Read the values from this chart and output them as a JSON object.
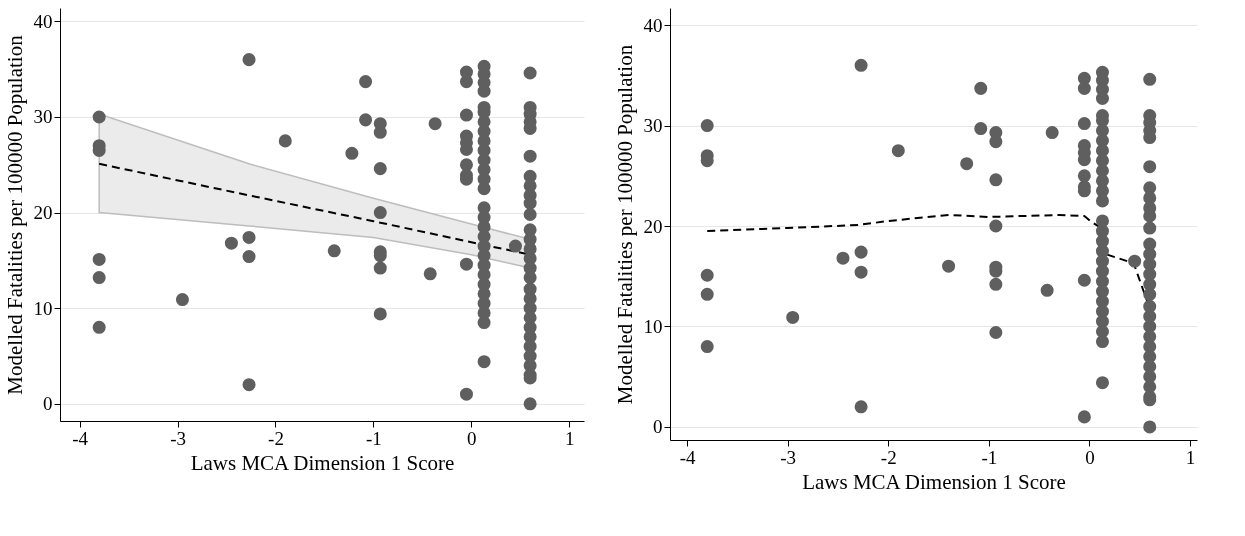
{
  "chart_data": [
    {
      "type": "scatter",
      "xlabel": "Laws MCA Dimension 1 Score",
      "ylabel": "Modelled Fatalities per 100000 Population",
      "xlim": [
        -4.2,
        1.15
      ],
      "ylim": [
        -1.8,
        41.4
      ],
      "xticks": [
        -4,
        -3,
        -2,
        -1,
        0,
        1
      ],
      "yticks": [
        0,
        10,
        20,
        30,
        40
      ],
      "grid": "y",
      "series": [
        {
          "marker": "circle",
          "color": "#5f5f5f",
          "x": [
            -3.8,
            -3.8,
            -3.8,
            -3.8,
            -3.8,
            -3.8,
            -2.95,
            -2.45,
            -2.27,
            -2.27,
            -2.27,
            -2.27,
            -1.9,
            -1.4,
            -1.22,
            -1.08,
            -1.08,
            -0.93,
            -0.93,
            -0.93,
            -0.93,
            -0.93,
            -0.93,
            -0.93,
            -0.93,
            -0.37,
            -0.42,
            -0.05,
            -0.05,
            -0.05,
            -0.05,
            -0.05,
            -0.05,
            -0.05,
            -0.05,
            -0.05,
            -0.05,
            -0.05,
            0.13,
            0.13,
            0.13,
            0.13,
            0.13,
            0.13,
            0.13,
            0.13,
            0.13,
            0.13,
            0.13,
            0.13,
            0.13,
            0.13,
            0.13,
            0.13,
            0.13,
            0.13,
            0.13,
            0.13,
            0.13,
            0.13,
            0.13,
            0.13,
            0.13,
            0.13,
            0.13,
            0.13,
            0.45,
            0.6,
            0.6,
            0.6,
            0.6,
            0.6,
            0.6,
            0.6,
            0.6,
            0.6,
            0.6,
            0.6,
            0.6,
            0.6,
            0.6,
            0.6,
            0.6,
            0.6,
            0.6,
            0.6,
            0.6,
            0.6,
            0.6,
            0.6,
            0.6,
            0.6,
            0.6,
            0.6,
            0.6,
            0.6
          ],
          "values": [
            30,
            27,
            26.5,
            15.1,
            13.2,
            8,
            10.9,
            16.8,
            36,
            17.4,
            15.4,
            2,
            27.5,
            16,
            26.2,
            33.7,
            29.7,
            29.3,
            28.4,
            24.6,
            20,
            15.9,
            15.5,
            14.2,
            9.4,
            29.3,
            13.6,
            34.7,
            33.7,
            30.2,
            28,
            27.3,
            26.6,
            25,
            23.9,
            23.5,
            14.6,
            1,
            35.3,
            34.5,
            33.6,
            32.7,
            31,
            30.5,
            29.5,
            28.5,
            27.5,
            26.5,
            25.5,
            24.5,
            23.5,
            22.5,
            20.5,
            19.5,
            18.5,
            17.5,
            16.5,
            15.5,
            14.5,
            13.5,
            12.5,
            11.5,
            10.5,
            9.5,
            8.5,
            4.4,
            16.5,
            34.6,
            31,
            30.3,
            29.5,
            28.8,
            25.9,
            23.8,
            22.8,
            21.8,
            21,
            19.8,
            18.2,
            17.2,
            16.2,
            15.2,
            14.2,
            13.2,
            12,
            11,
            10,
            9,
            8,
            7,
            6,
            5,
            4,
            3,
            2.7,
            0
          ]
        },
        {
          "type": "line",
          "marker": "none",
          "color": "#000000",
          "line_style": "dashed",
          "x": [
            -3.8,
            -2.27,
            -1,
            0,
            0.6
          ],
          "values": [
            25.1,
            21.8,
            19.1,
            16.9,
            15.6
          ],
          "lower": [
            20,
            18.6,
            17.4,
            15.6,
            14.2
          ],
          "upper": [
            30.3,
            25.1,
            21.5,
            18.8,
            17.2
          ]
        }
      ]
    },
    {
      "type": "scatter",
      "xlabel": "Laws MCA Dimension 1 Score",
      "ylabel": "Modelled Fatalities per 100000 Population",
      "xlim": [
        -4.17,
        1.07
      ],
      "ylim": [
        -1.3,
        41.7
      ],
      "xticks": [
        -4,
        -3,
        -2,
        -1,
        0,
        1
      ],
      "yticks": [
        0,
        10,
        20,
        30,
        40
      ],
      "grid": "y",
      "series": [
        {
          "marker": "circle",
          "color": "#5f5f5f",
          "x": [
            -3.8,
            -3.8,
            -3.8,
            -3.8,
            -3.8,
            -3.8,
            -2.95,
            -2.45,
            -2.27,
            -2.27,
            -2.27,
            -2.27,
            -1.9,
            -1.4,
            -1.22,
            -1.08,
            -1.08,
            -0.93,
            -0.93,
            -0.93,
            -0.93,
            -0.93,
            -0.93,
            -0.93,
            -0.93,
            -0.37,
            -0.42,
            -0.05,
            -0.05,
            -0.05,
            -0.05,
            -0.05,
            -0.05,
            -0.05,
            -0.05,
            -0.05,
            -0.05,
            -0.05,
            0.13,
            0.13,
            0.13,
            0.13,
            0.13,
            0.13,
            0.13,
            0.13,
            0.13,
            0.13,
            0.13,
            0.13,
            0.13,
            0.13,
            0.13,
            0.13,
            0.13,
            0.13,
            0.13,
            0.13,
            0.13,
            0.13,
            0.13,
            0.13,
            0.13,
            0.13,
            0.13,
            0.13,
            0.45,
            0.6,
            0.6,
            0.6,
            0.6,
            0.6,
            0.6,
            0.6,
            0.6,
            0.6,
            0.6,
            0.6,
            0.6,
            0.6,
            0.6,
            0.6,
            0.6,
            0.6,
            0.6,
            0.6,
            0.6,
            0.6,
            0.6,
            0.6,
            0.6,
            0.6,
            0.6,
            0.6,
            0.6,
            0.6
          ],
          "values": [
            30,
            27,
            26.5,
            15.1,
            13.2,
            8,
            10.9,
            16.8,
            36,
            17.4,
            15.4,
            2,
            27.5,
            16,
            26.2,
            33.7,
            29.7,
            29.3,
            28.4,
            24.6,
            20,
            15.9,
            15.5,
            14.2,
            9.4,
            29.3,
            13.6,
            34.7,
            33.7,
            30.2,
            28,
            27.3,
            26.6,
            25,
            23.9,
            23.5,
            14.6,
            1,
            35.3,
            34.5,
            33.6,
            32.7,
            31,
            30.5,
            29.5,
            28.5,
            27.5,
            26.5,
            25.5,
            24.5,
            23.5,
            22.5,
            20.5,
            19.5,
            18.5,
            17.5,
            16.5,
            15.5,
            14.5,
            13.5,
            12.5,
            11.5,
            10.5,
            9.5,
            8.5,
            4.4,
            16.5,
            34.6,
            31,
            30.3,
            29.5,
            28.8,
            25.9,
            23.8,
            22.8,
            21.8,
            21,
            19.8,
            18.2,
            17.2,
            16.2,
            15.2,
            14.2,
            13.2,
            12,
            11,
            10,
            9,
            8,
            7,
            6,
            5,
            4,
            3,
            2.7,
            0
          ]
        },
        {
          "type": "line",
          "marker": "none",
          "color": "#000000",
          "line_style": "dashed",
          "x": [
            -3.8,
            -3,
            -2.3,
            -2,
            -1.4,
            -1,
            -0.3,
            -0.05,
            0.02,
            0.12,
            0.13,
            0.44,
            0.6,
            0.6
          ],
          "values": [
            19.5,
            19.8,
            20.1,
            20.5,
            21.1,
            20.9,
            21.1,
            21,
            20.4,
            19.8,
            17.3,
            16.3,
            11.8,
            15.1
          ]
        }
      ]
    }
  ]
}
